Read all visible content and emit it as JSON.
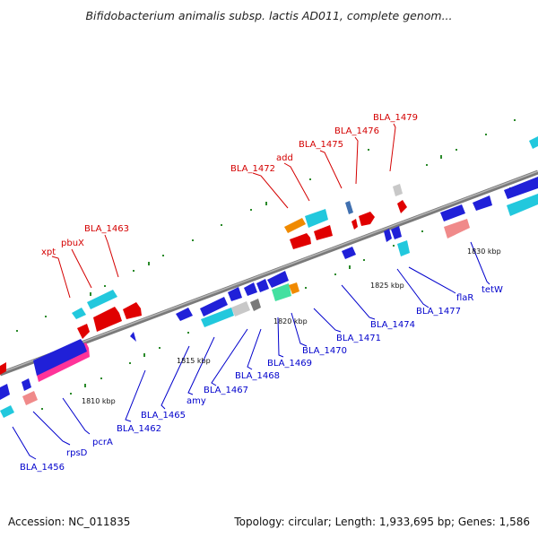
{
  "title": "Bifidobacterium animalis subsp. lactis AD011, complete genom...",
  "footer": {
    "accession": "Accession: NC_011835",
    "topology": "Topology: circular; Length: 1,933,695 bp; Genes: 1,586"
  },
  "colors": {
    "backbone": "#7a7a7a",
    "forward_label": "#d40000",
    "reverse_label": "#0000cc",
    "dots": "#2a8a2a"
  },
  "scale_labels": [
    "1810 kbp",
    "1815 kbp",
    "1820 kbp",
    "1825 kbp",
    "1830 kbp"
  ],
  "forward_labels": [
    "xpt",
    "pbuX",
    "BLA_1463",
    "BLA_1472",
    "add",
    "BLA_1475",
    "BLA_1476",
    "BLA_1479"
  ],
  "reverse_labels": [
    "BLA_1456",
    "rpsD",
    "pcrA",
    "BLA_1462",
    "BLA_1465",
    "amy",
    "BLA_1467",
    "BLA_1468",
    "BLA_1469",
    "BLA_1470",
    "BLA_1471",
    "BLA_1474",
    "BLA_1477",
    "flaR",
    "tetW"
  ]
}
